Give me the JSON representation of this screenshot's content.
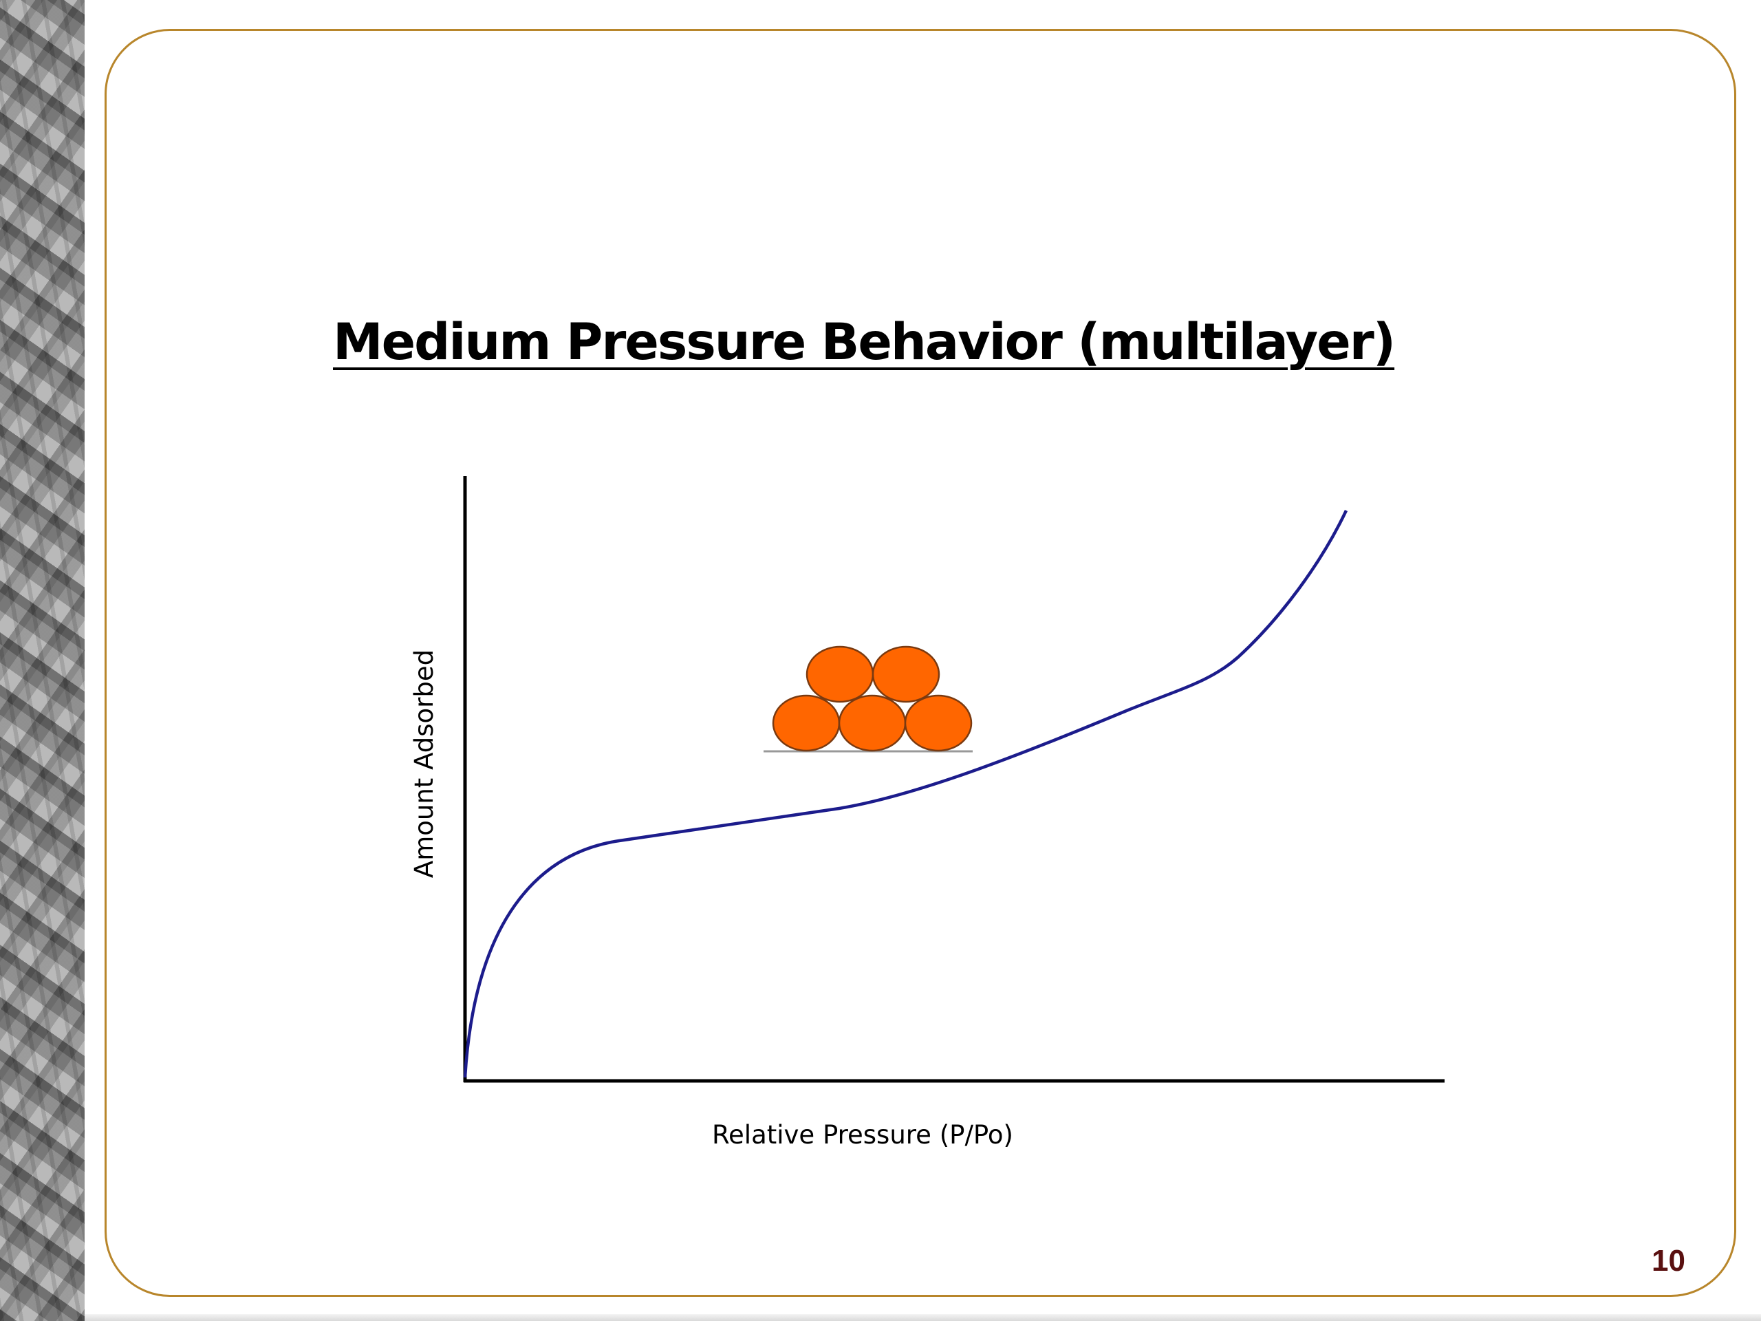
{
  "slide": {
    "title": "Medium Pressure Behavior (multilayer)",
    "page_number": "10",
    "colors": {
      "frame": "#b8862b",
      "curve": "#1c1c8c",
      "molecule_fill": "#ff6600",
      "molecule_stroke": "#7a3a10",
      "axes": "#000000",
      "page_number": "#5a1010"
    }
  },
  "diagram": {
    "x_axis_label": "Relative Pressure (P/Po)",
    "y_axis_label": "Amount Adsorbed",
    "curve_shape": "type II isotherm: steep rise at low pressure, knee, near-linear plateau, sharp upturn near saturation",
    "illustration": {
      "description": "multilayer of adsorbed molecules on surface",
      "bottom_row_count": 3,
      "top_row_count": 2
    }
  }
}
